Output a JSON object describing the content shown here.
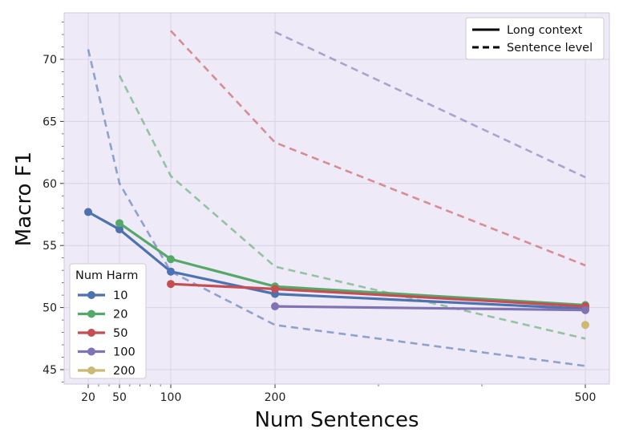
{
  "chart_data": {
    "type": "line",
    "title": "",
    "xlabel": "Num Sentences",
    "ylabel": "Macro F1",
    "x_ticks": [
      20,
      50,
      100,
      200,
      500
    ],
    "y_ticks": [
      45,
      50,
      55,
      60,
      65,
      70
    ],
    "xlim": [
      10,
      530
    ],
    "ylim": [
      44,
      73.5
    ],
    "x_scale": "linear-ish (compressed spacing)",
    "grid": true,
    "style_legend": {
      "position": "top-right",
      "entries": [
        {
          "label": "Long context",
          "dash": "solid"
        },
        {
          "label": "Sentence level",
          "dash": "dashed"
        }
      ]
    },
    "series_legend": {
      "title": "Num Harm",
      "position": "lower-left"
    },
    "series": [
      {
        "name": "10",
        "color": "#4c72b0",
        "long_context": {
          "x": [
            20,
            50,
            100,
            200,
            500
          ],
          "y": [
            57.7,
            56.3,
            52.9,
            51.1,
            49.9
          ]
        },
        "sentence_level": {
          "x": [
            20,
            50,
            100,
            200,
            500
          ],
          "y": [
            70.8,
            60.0,
            52.9,
            48.6,
            45.3
          ]
        }
      },
      {
        "name": "20",
        "color": "#55a868",
        "long_context": {
          "x": [
            50,
            100,
            200,
            500
          ],
          "y": [
            56.8,
            53.9,
            51.7,
            50.2
          ]
        },
        "sentence_level": {
          "x": [
            50,
            100,
            200,
            500
          ],
          "y": [
            68.7,
            60.6,
            53.3,
            47.5
          ]
        }
      },
      {
        "name": "50",
        "color": "#c44e52",
        "long_context": {
          "x": [
            100,
            200,
            500
          ],
          "y": [
            51.9,
            51.5,
            50.1
          ]
        },
        "sentence_level": {
          "x": [
            100,
            200,
            500
          ],
          "y": [
            72.3,
            63.3,
            53.4
          ]
        }
      },
      {
        "name": "100",
        "color": "#8172b3",
        "long_context": {
          "x": [
            200,
            500
          ],
          "y": [
            50.1,
            49.8
          ]
        },
        "sentence_level": {
          "x": [
            200,
            500
          ],
          "y": [
            72.2,
            60.5
          ]
        }
      },
      {
        "name": "200",
        "color": "#ccb974",
        "long_context": {
          "x": [
            500
          ],
          "y": [
            48.6
          ]
        },
        "sentence_level": {
          "x": [],
          "y": []
        }
      }
    ]
  }
}
